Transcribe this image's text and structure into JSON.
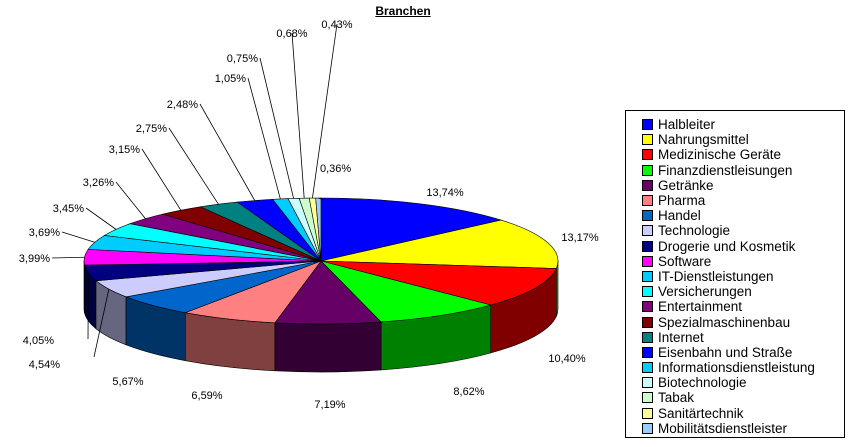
{
  "chart_data": {
    "type": "pie",
    "title": "Branchen",
    "legend_position": "right",
    "categories": [
      "Halbleiter",
      "Nahrungsmittel",
      "Medizinische Geräte",
      "Finanzdienstleisungen",
      "Getränke",
      "Pharma",
      "Handel",
      "Technologie",
      "Drogerie und Kosmetik",
      "Software",
      "IT-Dienstleistungen",
      "Versicherungen",
      "Entertainment",
      "Spezialmaschinenbau",
      "Internet",
      "Eisenbahn und Straße",
      "Informationsdienstleistung",
      "Biotechnologie",
      "Tabak",
      "Sanitärtechnik",
      "Mobilitätsdienstleister"
    ],
    "values": [
      13.74,
      13.17,
      10.4,
      8.62,
      7.19,
      6.59,
      5.67,
      4.54,
      4.05,
      3.99,
      3.69,
      3.45,
      3.26,
      3.15,
      2.75,
      2.48,
      1.05,
      0.75,
      0.68,
      0.43,
      0.36
    ],
    "labels": [
      "13,74%",
      "13,17%",
      "10,40%",
      "8,62%",
      "7,19%",
      "6,59%",
      "5,67%",
      "4,54%",
      "4,05%",
      "3,99%",
      "3,69%",
      "3,45%",
      "3,26%",
      "3,15%",
      "2,75%",
      "2,48%",
      "1,05%",
      "0,75%",
      "0,68%",
      "0,43%",
      "0,36%"
    ],
    "colors": [
      "#0000FF",
      "#FFFF00",
      "#FF0000",
      "#00FF00",
      "#660066",
      "#FF8080",
      "#0066CC",
      "#CCCCFF",
      "#000080",
      "#FF00FF",
      "#00CCFF",
      "#00FFFF",
      "#800080",
      "#800000",
      "#008080",
      "#0000FF",
      "#00CCFF",
      "#CCFFFF",
      "#CCFFCC",
      "#FFFF99",
      "#99CCFF"
    ]
  }
}
